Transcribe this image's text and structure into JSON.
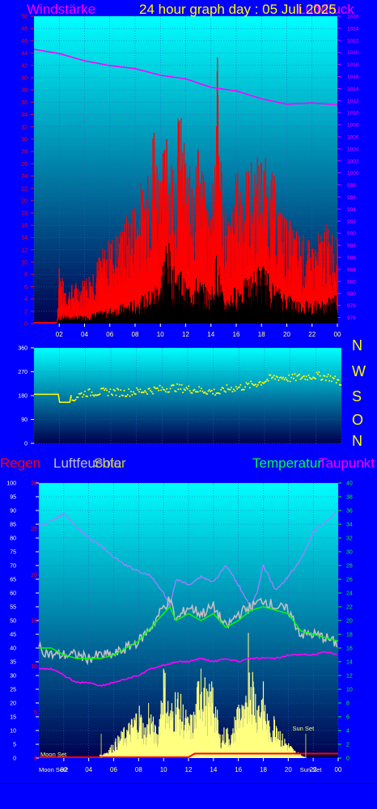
{
  "title": "24 hour graph day : 05 Juli 2025",
  "colors": {
    "background": "#0000ff",
    "windstaerke": "#ff0000",
    "druck": "#ff00ff",
    "regen": "#ff0000",
    "luftfeuchte": "#c0c0c0",
    "solar": "#ffff80",
    "temperatur": "#00ff00",
    "taupunkt": "#ff00ff",
    "winddir": "#ffff00",
    "axis_white": "#ffffff"
  },
  "chart_data": [
    {
      "type": "area",
      "name": "wind",
      "labels": {
        "left": "Windstärke",
        "right": "Luftdruck"
      },
      "x_ticks": [
        "02",
        "04",
        "06",
        "08",
        "10",
        "12",
        "14",
        "16",
        "18",
        "20",
        "22",
        "00"
      ],
      "y_left_ticks": [
        0,
        2,
        4,
        6,
        8,
        10,
        12,
        14,
        16,
        18,
        20,
        22,
        24,
        26,
        28,
        30,
        32,
        34,
        36,
        38,
        40,
        42,
        44,
        46,
        48,
        50
      ],
      "y_left_lim": [
        0,
        50
      ],
      "y_right_ticks": [
        976,
        978,
        980,
        982,
        984,
        986,
        988,
        990,
        992,
        994,
        996,
        998,
        1000,
        1002,
        1004,
        1006,
        1008,
        1010,
        1012,
        1014,
        1016,
        1018,
        1020,
        1022,
        1024,
        1026
      ],
      "y_right_lim": [
        975,
        1026
      ],
      "x_lim": [
        0,
        24
      ],
      "series": [
        {
          "name": "Windstärke",
          "role": "gust",
          "x": [
            0,
            1.8,
            2,
            2.5,
            3,
            4,
            5,
            6,
            7,
            8,
            9,
            9.5,
            10,
            10.5,
            11,
            11.5,
            12,
            12.5,
            13,
            13.5,
            14,
            14.5,
            15,
            15.5,
            16,
            17,
            18,
            19,
            19.5,
            20,
            21,
            22,
            23,
            24
          ],
          "values": [
            0,
            0,
            9,
            5,
            6,
            7,
            10,
            13,
            15,
            19,
            24,
            31,
            23,
            30,
            25,
            33,
            26,
            22,
            28,
            21,
            17,
            41,
            19,
            16,
            23,
            24,
            26,
            22,
            18,
            16,
            14,
            12,
            15,
            14
          ]
        },
        {
          "name": "Windstärke",
          "role": "mean",
          "x": [
            0,
            1.8,
            2,
            3,
            4,
            5,
            6,
            7,
            8,
            9,
            10,
            10.5,
            11,
            11.5,
            12,
            13,
            14,
            14.5,
            15,
            16,
            17,
            18,
            19,
            20,
            21,
            22,
            23,
            24
          ],
          "values": [
            0,
            0,
            1,
            1,
            1,
            1.5,
            2,
            2.5,
            3,
            4,
            6,
            12,
            7,
            8,
            5,
            6,
            4,
            10,
            3,
            5,
            6,
            8,
            5,
            4,
            3,
            3,
            3,
            4
          ]
        },
        {
          "name": "Luftdruck",
          "x": [
            0,
            2,
            4,
            6,
            8,
            10,
            12,
            14,
            16,
            18,
            20,
            22,
            24
          ],
          "values": [
            1020.5,
            1019.8,
            1018.6,
            1017.8,
            1017.3,
            1016.2,
            1015.6,
            1014.2,
            1013.6,
            1012.3,
            1011.4,
            1011.6,
            1011.3
          ]
        }
      ]
    },
    {
      "type": "scatter",
      "name": "wind-direction",
      "y_ticks": [
        0,
        90,
        180,
        270,
        360
      ],
      "y_lim": [
        0,
        360
      ],
      "x_lim": [
        0,
        24
      ],
      "compass": [
        "N",
        "W",
        "S",
        "O",
        "N"
      ],
      "series": [
        {
          "name": "Windrichtung",
          "x": [
            0,
            1,
            1.9,
            2,
            2.8,
            3.5,
            4,
            5,
            6,
            7,
            8,
            9,
            10,
            11,
            12,
            13,
            14,
            14.5,
            15,
            16,
            17,
            18,
            18.5,
            19,
            20,
            21,
            22,
            23,
            24
          ],
          "values": [
            185,
            185,
            180,
            155,
            155,
            182,
            190,
            192,
            195,
            190,
            195,
            200,
            205,
            210,
            205,
            200,
            195,
            190,
            205,
            210,
            220,
            235,
            245,
            250,
            245,
            250,
            255,
            250,
            230
          ]
        }
      ]
    },
    {
      "type": "line",
      "name": "climate",
      "labels": {
        "regen": "Regen",
        "luftfeuchte": "Luftfeuchte",
        "solar": "Solar",
        "temperatur": "Temperatur",
        "taupunkt": "Taupunkt"
      },
      "x_ticks": [
        "02",
        "04",
        "06",
        "08",
        "10",
        "12",
        "14",
        "16",
        "18",
        "20",
        "22",
        "00"
      ],
      "x_lim": [
        0,
        24
      ],
      "y_humidity_ticks": [
        0,
        5,
        10,
        15,
        20,
        25,
        30,
        35,
        40,
        45,
        50,
        55,
        60,
        65,
        70,
        75,
        80,
        85,
        90,
        95,
        100
      ],
      "y_humidity_lim": [
        0,
        100
      ],
      "y_rain_ticks": [
        0,
        5,
        10,
        15,
        20,
        25,
        30
      ],
      "y_rain_lim": [
        0,
        30
      ],
      "y_temp_ticks": [
        0,
        2,
        4,
        6,
        8,
        10,
        12,
        14,
        16,
        18,
        20,
        22,
        24,
        26,
        28,
        30,
        32,
        34,
        36,
        38,
        40
      ],
      "y_temp_lim": [
        0,
        40
      ],
      "annotations": {
        "moon_set": "Moon Set",
        "sun_set": "Sun Set",
        "moon_set_tick": "Moon Set2",
        "sun_set_tick": "Sun Set"
      },
      "series": [
        {
          "name": "Luftfeuchte",
          "x": [
            0,
            1,
            2,
            3,
            4,
            5,
            6,
            7,
            8,
            9,
            10,
            10.5,
            11,
            12,
            13,
            14,
            15,
            16,
            17,
            17.5,
            18,
            19,
            20,
            21,
            22,
            23,
            24
          ],
          "values": [
            84,
            86,
            89,
            84,
            80,
            77,
            73,
            70,
            68,
            66,
            60,
            55,
            65,
            63,
            66,
            64,
            70,
            63,
            55,
            60,
            70,
            61,
            66,
            72,
            82,
            86,
            90
          ]
        },
        {
          "name": "Temperatur",
          "x": [
            0,
            1,
            2,
            3,
            4,
            5,
            6,
            7,
            8,
            9,
            10,
            10.5,
            11,
            12,
            13,
            14,
            15,
            16,
            17,
            18,
            19,
            20,
            21,
            22,
            23,
            24
          ],
          "values": [
            16,
            16,
            15,
            14.5,
            14.5,
            14.5,
            15,
            16,
            17,
            19,
            21,
            22,
            20,
            21,
            20,
            21,
            19,
            20,
            21.5,
            22,
            21.5,
            21,
            18.5,
            18,
            17.5,
            17
          ]
        },
        {
          "name": "Luftfeuchte-Raw",
          "x": [
            0,
            1,
            2,
            3,
            4,
            5,
            6,
            7,
            8,
            9,
            10,
            10.5,
            11,
            12,
            13,
            14,
            15,
            16,
            17,
            18,
            19,
            20,
            21,
            22,
            23,
            24
          ],
          "values": [
            16,
            15,
            15,
            15,
            14.5,
            15,
            15,
            16,
            17,
            19,
            22,
            23,
            20,
            22,
            21,
            22,
            19,
            21,
            22,
            23,
            22,
            21.5,
            18,
            18,
            17.5,
            16.5
          ]
        },
        {
          "name": "Taupunkt",
          "x": [
            0,
            1,
            2,
            3,
            4,
            5,
            6,
            7,
            8,
            9,
            10,
            11,
            12,
            13,
            14,
            15,
            16,
            17,
            18,
            19,
            20,
            21,
            22,
            23,
            24
          ],
          "values": [
            13,
            13,
            12,
            11,
            11,
            10.5,
            11,
            11.5,
            12,
            13,
            13.5,
            14,
            14,
            14.5,
            14,
            14.5,
            14,
            14.5,
            14.5,
            14.5,
            15,
            15,
            15,
            15.5,
            15
          ]
        },
        {
          "name": "Solar",
          "x": [
            0,
            4.5,
            5,
            5.5,
            6,
            6.5,
            7,
            7.5,
            8,
            8.5,
            9,
            9.5,
            10,
            10.5,
            11,
            11.5,
            12,
            12.5,
            13,
            13.5,
            14,
            14.5,
            15,
            15.5,
            16,
            16.5,
            17,
            17.5,
            18,
            18.5,
            19,
            19.5,
            20,
            20.5,
            21,
            21.5,
            24
          ],
          "values": [
            0,
            0,
            0.5,
            1,
            2,
            3,
            4,
            5,
            7,
            4,
            6,
            3,
            12,
            6,
            9,
            7,
            5,
            6,
            13,
            8,
            10,
            3,
            4,
            3,
            8,
            6,
            13,
            8,
            9,
            4,
            6,
            3,
            2,
            1,
            0.5,
            0,
            0
          ]
        },
        {
          "name": "Regen",
          "x": [
            0,
            12,
            12.5,
            24
          ],
          "values": [
            0,
            0,
            0.4,
            0.4
          ]
        }
      ]
    }
  ]
}
